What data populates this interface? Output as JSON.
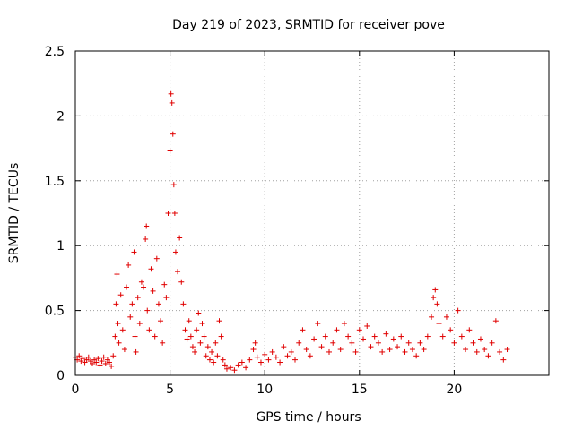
{
  "chart_data": {
    "type": "scatter",
    "title": "Day 219 of 2023, SRMTID for receiver pove",
    "xlabel": "GPS time / hours",
    "ylabel": "SRMTID / TECUs",
    "xlim": [
      0,
      25
    ],
    "ylim": [
      0,
      2.5
    ],
    "xticks": [
      0,
      5,
      10,
      15,
      20
    ],
    "xtick_labels": [
      "0",
      "5",
      "10",
      "15",
      "20"
    ],
    "yticks": [
      0,
      0.5,
      1,
      1.5,
      2,
      2.5
    ],
    "ytick_labels": [
      "0",
      "0.5",
      "1",
      "1.5",
      "2",
      "2.5"
    ],
    "grid": true,
    "marker": "plus",
    "color": "#e00000",
    "series": [
      {
        "name": "SRMTID",
        "points": [
          [
            0.0,
            0.14
          ],
          [
            0.1,
            0.12
          ],
          [
            0.2,
            0.15
          ],
          [
            0.3,
            0.11
          ],
          [
            0.4,
            0.13
          ],
          [
            0.5,
            0.1
          ],
          [
            0.6,
            0.12
          ],
          [
            0.7,
            0.14
          ],
          [
            0.8,
            0.11
          ],
          [
            0.9,
            0.09
          ],
          [
            1.0,
            0.12
          ],
          [
            1.1,
            0.1
          ],
          [
            1.2,
            0.13
          ],
          [
            1.3,
            0.08
          ],
          [
            1.4,
            0.11
          ],
          [
            1.5,
            0.14
          ],
          [
            1.6,
            0.09
          ],
          [
            1.7,
            0.12
          ],
          [
            1.8,
            0.1
          ],
          [
            1.9,
            0.07
          ],
          [
            2.0,
            0.15
          ],
          [
            2.1,
            0.3
          ],
          [
            2.15,
            0.55
          ],
          [
            2.2,
            0.78
          ],
          [
            2.25,
            0.4
          ],
          [
            2.3,
            0.25
          ],
          [
            2.4,
            0.62
          ],
          [
            2.5,
            0.35
          ],
          [
            2.6,
            0.2
          ],
          [
            2.7,
            0.68
          ],
          [
            2.8,
            0.85
          ],
          [
            2.9,
            0.45
          ],
          [
            3.0,
            0.55
          ],
          [
            3.1,
            0.95
          ],
          [
            3.15,
            0.3
          ],
          [
            3.2,
            0.18
          ],
          [
            3.3,
            0.6
          ],
          [
            3.4,
            0.4
          ],
          [
            3.5,
            0.72
          ],
          [
            3.6,
            0.68
          ],
          [
            3.7,
            1.05
          ],
          [
            3.75,
            1.15
          ],
          [
            3.8,
            0.5
          ],
          [
            3.9,
            0.35
          ],
          [
            4.0,
            0.82
          ],
          [
            4.1,
            0.65
          ],
          [
            4.2,
            0.3
          ],
          [
            4.3,
            0.9
          ],
          [
            4.4,
            0.55
          ],
          [
            4.5,
            0.42
          ],
          [
            4.6,
            0.25
          ],
          [
            4.7,
            0.7
          ],
          [
            4.8,
            0.6
          ],
          [
            4.9,
            1.25
          ],
          [
            5.0,
            1.73
          ],
          [
            5.05,
            2.17
          ],
          [
            5.1,
            2.1
          ],
          [
            5.15,
            1.86
          ],
          [
            5.2,
            1.47
          ],
          [
            5.25,
            1.25
          ],
          [
            5.3,
            0.95
          ],
          [
            5.4,
            0.8
          ],
          [
            5.5,
            1.06
          ],
          [
            5.6,
            0.72
          ],
          [
            5.7,
            0.55
          ],
          [
            5.8,
            0.35
          ],
          [
            5.9,
            0.28
          ],
          [
            6.0,
            0.42
          ],
          [
            6.1,
            0.3
          ],
          [
            6.2,
            0.22
          ],
          [
            6.3,
            0.18
          ],
          [
            6.4,
            0.35
          ],
          [
            6.5,
            0.48
          ],
          [
            6.6,
            0.25
          ],
          [
            6.7,
            0.4
          ],
          [
            6.8,
            0.3
          ],
          [
            6.9,
            0.15
          ],
          [
            7.0,
            0.22
          ],
          [
            7.1,
            0.12
          ],
          [
            7.2,
            0.18
          ],
          [
            7.3,
            0.1
          ],
          [
            7.4,
            0.25
          ],
          [
            7.5,
            0.15
          ],
          [
            7.6,
            0.42
          ],
          [
            7.7,
            0.3
          ],
          [
            7.8,
            0.12
          ],
          [
            7.9,
            0.08
          ],
          [
            8.0,
            0.05
          ],
          [
            8.2,
            0.06
          ],
          [
            8.4,
            0.04
          ],
          [
            8.6,
            0.08
          ],
          [
            8.8,
            0.1
          ],
          [
            9.0,
            0.06
          ],
          [
            9.2,
            0.12
          ],
          [
            9.4,
            0.2
          ],
          [
            9.5,
            0.25
          ],
          [
            9.6,
            0.14
          ],
          [
            9.8,
            0.1
          ],
          [
            10.0,
            0.16
          ],
          [
            10.2,
            0.12
          ],
          [
            10.4,
            0.18
          ],
          [
            10.6,
            0.14
          ],
          [
            10.8,
            0.1
          ],
          [
            11.0,
            0.22
          ],
          [
            11.2,
            0.15
          ],
          [
            11.4,
            0.18
          ],
          [
            11.6,
            0.12
          ],
          [
            11.8,
            0.25
          ],
          [
            12.0,
            0.35
          ],
          [
            12.2,
            0.2
          ],
          [
            12.4,
            0.15
          ],
          [
            12.6,
            0.28
          ],
          [
            12.8,
            0.4
          ],
          [
            13.0,
            0.22
          ],
          [
            13.2,
            0.3
          ],
          [
            13.4,
            0.18
          ],
          [
            13.6,
            0.25
          ],
          [
            13.8,
            0.35
          ],
          [
            14.0,
            0.2
          ],
          [
            14.2,
            0.4
          ],
          [
            14.4,
            0.3
          ],
          [
            14.6,
            0.25
          ],
          [
            14.8,
            0.18
          ],
          [
            15.0,
            0.35
          ],
          [
            15.2,
            0.28
          ],
          [
            15.4,
            0.38
          ],
          [
            15.6,
            0.22
          ],
          [
            15.8,
            0.3
          ],
          [
            16.0,
            0.25
          ],
          [
            16.2,
            0.18
          ],
          [
            16.4,
            0.32
          ],
          [
            16.6,
            0.2
          ],
          [
            16.8,
            0.28
          ],
          [
            17.0,
            0.22
          ],
          [
            17.2,
            0.3
          ],
          [
            17.4,
            0.18
          ],
          [
            17.6,
            0.25
          ],
          [
            17.8,
            0.2
          ],
          [
            18.0,
            0.15
          ],
          [
            18.2,
            0.25
          ],
          [
            18.4,
            0.2
          ],
          [
            18.6,
            0.3
          ],
          [
            18.8,
            0.45
          ],
          [
            18.9,
            0.6
          ],
          [
            19.0,
            0.66
          ],
          [
            19.1,
            0.55
          ],
          [
            19.2,
            0.4
          ],
          [
            19.4,
            0.3
          ],
          [
            19.6,
            0.45
          ],
          [
            19.8,
            0.35
          ],
          [
            20.0,
            0.25
          ],
          [
            20.2,
            0.5
          ],
          [
            20.4,
            0.3
          ],
          [
            20.6,
            0.2
          ],
          [
            20.8,
            0.35
          ],
          [
            21.0,
            0.25
          ],
          [
            21.2,
            0.18
          ],
          [
            21.4,
            0.28
          ],
          [
            21.6,
            0.2
          ],
          [
            21.8,
            0.15
          ],
          [
            22.0,
            0.25
          ],
          [
            22.2,
            0.42
          ],
          [
            22.4,
            0.18
          ],
          [
            22.6,
            0.12
          ],
          [
            22.8,
            0.2
          ]
        ]
      }
    ]
  }
}
